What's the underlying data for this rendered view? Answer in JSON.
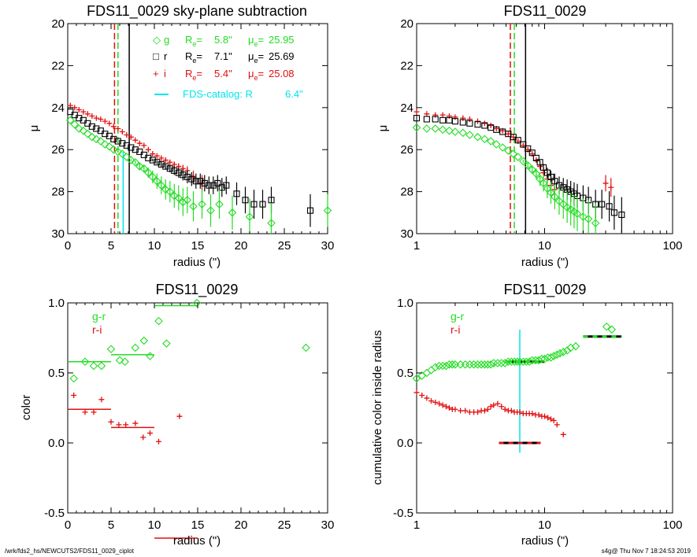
{
  "footer": {
    "path": "/wrk/fds2_hs/NEWCUTS2/FDS11_0029_ciplot",
    "stamp": "s4g@  Thu Nov  7 18:24:53 2019"
  },
  "colors": {
    "g": "#22dd22",
    "r": "#000000",
    "i": "#e01010",
    "cat": "#00e5ee"
  },
  "chart_data": [
    {
      "id": "p1",
      "type": "scatter",
      "xscale": "linear",
      "yscale": "linear-reversed",
      "title": "FDS11_0029 sky-plane subtraction",
      "xlabel": "radius (\")",
      "ylabel": "μ",
      "xlim": [
        0,
        30
      ],
      "ylim": [
        30,
        20
      ],
      "xticks": [
        0,
        5,
        10,
        15,
        20,
        25,
        30
      ],
      "yticks": [
        20,
        22,
        24,
        26,
        28,
        30
      ],
      "legend": [
        {
          "symbol": "◇",
          "band": "g",
          "re": "5.8\"",
          "mue": "25.95",
          "color": "g"
        },
        {
          "symbol": "□",
          "band": "r",
          "re": "7.1\"",
          "mue": "25.69",
          "color": "r"
        },
        {
          "symbol": "+",
          "band": "i",
          "re": "5.4\"",
          "mue": "25.08",
          "color": "i"
        }
      ],
      "catalog_label": "FDS-catalog: R",
      "catalog_re": "6.4\"",
      "vlines": [
        {
          "x": 5.4,
          "color": "i",
          "dash": true,
          "y0": 20,
          "y1": 30
        },
        {
          "x": 5.8,
          "color": "g",
          "dash": true,
          "y0": 20,
          "y1": 30
        },
        {
          "x": 7.1,
          "color": "r",
          "dash": false,
          "y0": 20,
          "y1": 30
        },
        {
          "x": 6.4,
          "color": "cat",
          "dash": false,
          "y0": 26.1,
          "y1": 30
        }
      ],
      "series": [
        {
          "band": "i",
          "marker": "plus",
          "color": "i",
          "x": [
            0.3,
            0.8,
            1.3,
            1.8,
            2.3,
            2.8,
            3.3,
            3.8,
            4.3,
            4.8,
            5.3,
            5.8,
            6.3,
            6.8,
            7.3,
            7.8,
            8.3,
            8.8,
            9.3,
            9.8,
            10.3,
            10.8,
            11.3,
            11.8,
            12.3,
            12.8,
            13.3,
            13.8,
            14.5,
            15.5
          ],
          "y": [
            23.9,
            24.0,
            24.1,
            24.2,
            24.3,
            24.4,
            24.5,
            24.55,
            24.65,
            24.75,
            24.9,
            25.0,
            25.15,
            25.3,
            25.4,
            25.55,
            25.7,
            25.8,
            26.0,
            26.2,
            26.3,
            26.4,
            26.5,
            26.6,
            26.7,
            26.8,
            26.9,
            27.0,
            27.3,
            27.6
          ]
        },
        {
          "band": "r",
          "marker": "square",
          "color": "r",
          "x": [
            0.3,
            0.8,
            1.3,
            1.8,
            2.3,
            2.8,
            3.3,
            3.8,
            4.3,
            4.8,
            5.3,
            5.8,
            6.3,
            6.8,
            7.3,
            7.8,
            8.3,
            8.8,
            9.3,
            9.8,
            10.3,
            10.8,
            11.3,
            11.8,
            12.3,
            12.8,
            13.3,
            13.8,
            14.3,
            14.8,
            15.3,
            15.8,
            16.3,
            16.8,
            17.3,
            17.8,
            18.3,
            19.5,
            20.5,
            21.5,
            22.5,
            23.5,
            28.0
          ],
          "y": [
            24.2,
            24.35,
            24.5,
            24.6,
            24.75,
            24.9,
            25.0,
            25.1,
            25.25,
            25.35,
            25.5,
            25.6,
            25.7,
            25.8,
            25.9,
            26.0,
            26.1,
            26.25,
            26.4,
            26.5,
            26.6,
            26.7,
            26.8,
            26.9,
            27.0,
            27.1,
            27.2,
            27.3,
            27.4,
            27.5,
            27.5,
            27.6,
            27.7,
            27.7,
            27.6,
            27.8,
            27.7,
            28.1,
            28.4,
            28.6,
            28.6,
            28.4,
            28.9
          ]
        },
        {
          "band": "g",
          "marker": "diamond",
          "color": "g",
          "x": [
            0.3,
            0.8,
            1.3,
            1.8,
            2.3,
            2.8,
            3.3,
            3.8,
            4.3,
            4.8,
            5.3,
            5.8,
            6.3,
            6.8,
            7.3,
            7.8,
            8.3,
            8.8,
            9.3,
            9.8,
            10.3,
            10.8,
            11.3,
            11.8,
            12.3,
            12.8,
            13.3,
            13.8,
            14.5,
            15.5,
            16.5,
            17.5,
            19.0,
            21.0,
            23.5,
            30.0
          ],
          "y": [
            24.6,
            24.8,
            25.0,
            25.1,
            25.25,
            25.4,
            25.5,
            25.6,
            25.75,
            25.85,
            26.0,
            26.1,
            26.2,
            26.35,
            26.5,
            26.6,
            26.8,
            26.9,
            27.1,
            27.3,
            27.5,
            27.7,
            27.9,
            28.0,
            28.2,
            28.3,
            28.5,
            28.4,
            28.7,
            28.6,
            28.9,
            28.6,
            29.0,
            29.2,
            29.5,
            28.9
          ]
        }
      ]
    },
    {
      "id": "p2",
      "type": "scatter",
      "xscale": "log",
      "yscale": "linear-reversed",
      "title": "FDS11_0029",
      "xlabel": "radius (\")",
      "ylabel": "μ",
      "xlim": [
        1,
        100
      ],
      "ylim": [
        30,
        20
      ],
      "xticks": [
        1,
        10,
        100
      ],
      "yticks": [
        20,
        22,
        24,
        26,
        28,
        30
      ],
      "vlines": [
        {
          "x": 5.4,
          "color": "i",
          "dash": true,
          "y0": 20,
          "y1": 30
        },
        {
          "x": 5.8,
          "color": "g",
          "dash": true,
          "y0": 20,
          "y1": 30
        },
        {
          "x": 7.1,
          "color": "r",
          "dash": false,
          "y0": 20,
          "y1": 30
        }
      ],
      "series": [
        {
          "band": "i",
          "marker": "plus",
          "color": "i",
          "x": [
            1.0,
            1.2,
            1.4,
            1.6,
            1.8,
            2.0,
            2.3,
            2.6,
            3.0,
            3.4,
            3.8,
            4.2,
            4.7,
            5.2,
            5.7,
            6.2,
            6.8,
            7.4,
            8.0,
            8.6,
            9.2,
            9.8,
            10.5,
            11.2,
            12.0,
            30.0,
            33.0
          ],
          "y": [
            24.2,
            24.3,
            24.35,
            24.35,
            24.4,
            24.45,
            24.5,
            24.55,
            24.65,
            24.75,
            24.85,
            25.0,
            25.1,
            25.25,
            25.4,
            25.6,
            25.8,
            26.0,
            26.2,
            26.5,
            26.8,
            27.1,
            27.4,
            27.7,
            27.9,
            27.6,
            27.8
          ]
        },
        {
          "band": "r",
          "marker": "square",
          "color": "r",
          "x": [
            1.0,
            1.2,
            1.4,
            1.6,
            1.8,
            2.0,
            2.3,
            2.6,
            3.0,
            3.4,
            3.8,
            4.2,
            4.7,
            5.2,
            5.7,
            6.2,
            6.8,
            7.4,
            8.0,
            8.6,
            9.2,
            9.8,
            10.5,
            11.2,
            12.0,
            13.0,
            14.0,
            15.0,
            16.0,
            17.0,
            18.0,
            20.0,
            22.0,
            25.0,
            28.0,
            32.0,
            35.0,
            40.0
          ],
          "y": [
            24.5,
            24.55,
            24.55,
            24.6,
            24.6,
            24.65,
            24.7,
            24.75,
            24.8,
            24.85,
            24.95,
            25.05,
            25.15,
            25.25,
            25.4,
            25.55,
            25.75,
            25.95,
            26.15,
            26.4,
            26.6,
            26.85,
            27.1,
            27.3,
            27.5,
            27.7,
            27.8,
            27.9,
            28.0,
            28.1,
            28.2,
            28.3,
            28.4,
            28.6,
            28.6,
            28.7,
            29.0,
            29.1
          ]
        },
        {
          "band": "g",
          "marker": "diamond",
          "color": "g",
          "x": [
            1.0,
            1.2,
            1.4,
            1.6,
            1.8,
            2.0,
            2.3,
            2.6,
            3.0,
            3.4,
            3.8,
            4.2,
            4.7,
            5.2,
            5.7,
            6.2,
            6.8,
            7.4,
            8.0,
            8.6,
            9.2,
            9.8,
            10.5,
            11.2,
            12.0,
            13.0,
            14.0,
            15.0,
            16.0,
            17.0,
            18.0,
            20.0,
            22.0,
            25.0
          ],
          "y": [
            24.95,
            25.0,
            25.0,
            25.05,
            25.1,
            25.15,
            25.2,
            25.3,
            25.4,
            25.5,
            25.6,
            25.75,
            25.9,
            26.05,
            26.2,
            26.35,
            26.55,
            26.75,
            26.95,
            27.15,
            27.4,
            27.6,
            27.85,
            28.05,
            28.25,
            28.45,
            28.6,
            28.75,
            28.85,
            28.95,
            29.05,
            29.2,
            29.3,
            29.5
          ]
        }
      ]
    },
    {
      "id": "p3",
      "type": "scatter",
      "xscale": "linear",
      "yscale": "linear",
      "title": "FDS11_0029",
      "xlabel": "radius (\")",
      "ylabel": "color",
      "xlim": [
        0,
        30
      ],
      "ylim": [
        -0.5,
        1.0
      ],
      "xticks": [
        0,
        5,
        10,
        15,
        20,
        25,
        30
      ],
      "yticks": [
        -0.5,
        0.0,
        0.5,
        1.0
      ],
      "labels": {
        "gr": "g-r",
        "ri": "r-i"
      },
      "series": [
        {
          "name": "g-r",
          "marker": "diamond",
          "color": "g",
          "x": [
            0.7,
            2.0,
            3.0,
            3.9,
            5.0,
            6.0,
            6.6,
            7.8,
            8.8,
            9.5,
            10.5,
            11.4,
            14.9,
            27.5
          ],
          "y": [
            0.46,
            0.58,
            0.55,
            0.55,
            0.67,
            0.59,
            0.58,
            0.68,
            0.73,
            0.62,
            0.87,
            0.71,
            1.0,
            0.68
          ]
        },
        {
          "name": "r-i",
          "marker": "plus",
          "color": "i",
          "x": [
            0.7,
            2.0,
            3.0,
            3.9,
            5.0,
            5.9,
            6.7,
            7.8,
            8.7,
            9.5,
            10.5,
            12.9
          ],
          "y": [
            0.34,
            0.22,
            0.22,
            0.31,
            0.15,
            0.13,
            0.13,
            0.14,
            0.04,
            0.07,
            0.01,
            0.19
          ]
        }
      ],
      "hsegments": [
        {
          "color": "g",
          "x0": 0,
          "x1": 5,
          "y": 0.58
        },
        {
          "color": "g",
          "x0": 5,
          "x1": 10,
          "y": 0.63
        },
        {
          "color": "g",
          "x0": 10,
          "x1": 15,
          "y": 0.98
        },
        {
          "color": "i",
          "x0": 0,
          "x1": 5,
          "y": 0.24
        },
        {
          "color": "i",
          "x0": 5,
          "x1": 10,
          "y": 0.11
        },
        {
          "color": "i",
          "x0": 10,
          "x1": 15,
          "y": -0.68
        }
      ]
    },
    {
      "id": "p4",
      "type": "scatter",
      "xscale": "log",
      "yscale": "linear",
      "title": "FDS11_0029",
      "xlabel": "radius (\")",
      "ylabel": "cumulative color inside radius",
      "xlim": [
        1,
        100
      ],
      "ylim": [
        -0.5,
        1.0
      ],
      "xticks": [
        1,
        10,
        100
      ],
      "yticks": [
        -0.5,
        0.0,
        0.5,
        1.0
      ],
      "labels": {
        "gr": "g-r",
        "ri": "r-i"
      },
      "vlines": [
        {
          "x": 6.4,
          "color": "cat",
          "dash": false,
          "y0": -0.07,
          "y1": 0.81
        }
      ],
      "series": [
        {
          "name": "g-r",
          "marker": "diamond",
          "color": "g",
          "x": [
            1.0,
            1.1,
            1.2,
            1.3,
            1.4,
            1.5,
            1.6,
            1.7,
            1.8,
            1.9,
            2.0,
            2.2,
            2.4,
            2.6,
            2.8,
            3.0,
            3.2,
            3.4,
            3.6,
            3.8,
            4.0,
            4.3,
            4.6,
            4.9,
            5.2,
            5.5,
            5.8,
            6.1,
            6.4,
            6.8,
            7.2,
            7.6,
            8.0,
            8.5,
            9.0,
            9.5,
            10.0,
            10.6,
            11.2,
            11.8,
            12.5,
            13.2,
            14.0,
            15.0,
            16.0,
            17.5,
            30.5,
            33.5
          ],
          "y": [
            0.46,
            0.48,
            0.5,
            0.52,
            0.54,
            0.55,
            0.55,
            0.55,
            0.56,
            0.56,
            0.56,
            0.56,
            0.56,
            0.56,
            0.56,
            0.56,
            0.56,
            0.56,
            0.56,
            0.56,
            0.57,
            0.57,
            0.57,
            0.57,
            0.58,
            0.58,
            0.58,
            0.58,
            0.58,
            0.58,
            0.58,
            0.58,
            0.59,
            0.59,
            0.59,
            0.6,
            0.6,
            0.61,
            0.61,
            0.62,
            0.63,
            0.64,
            0.65,
            0.66,
            0.68,
            0.69,
            0.83,
            0.81
          ]
        },
        {
          "name": "r-i",
          "marker": "plus",
          "color": "i",
          "x": [
            1.0,
            1.1,
            1.2,
            1.3,
            1.4,
            1.5,
            1.6,
            1.7,
            1.8,
            1.9,
            2.0,
            2.2,
            2.4,
            2.6,
            2.8,
            3.0,
            3.2,
            3.4,
            3.6,
            3.8,
            4.0,
            4.3,
            4.6,
            4.9,
            5.2,
            5.5,
            5.8,
            6.1,
            6.4,
            6.8,
            7.2,
            7.6,
            8.0,
            8.5,
            9.0,
            9.5,
            10.0,
            10.6,
            11.2,
            11.8,
            12.5,
            14.0
          ],
          "y": [
            0.36,
            0.34,
            0.32,
            0.3,
            0.29,
            0.28,
            0.27,
            0.26,
            0.25,
            0.24,
            0.24,
            0.23,
            0.23,
            0.22,
            0.22,
            0.22,
            0.23,
            0.23,
            0.24,
            0.26,
            0.27,
            0.28,
            0.26,
            0.24,
            0.23,
            0.23,
            0.22,
            0.22,
            0.22,
            0.21,
            0.21,
            0.21,
            0.21,
            0.2,
            0.2,
            0.19,
            0.19,
            0.18,
            0.17,
            0.16,
            0.13,
            0.06
          ]
        }
      ],
      "hsegments": [
        {
          "color": "g",
          "x0": 5.0,
          "x1": 10.0,
          "y": 0.58,
          "dash": true
        },
        {
          "color": "g",
          "x0": 20.0,
          "x1": 40.0,
          "y": 0.76,
          "dash": true
        },
        {
          "color": "i",
          "x0": 4.4,
          "x1": 9.3,
          "y": 0.0,
          "dash": true
        }
      ]
    }
  ]
}
